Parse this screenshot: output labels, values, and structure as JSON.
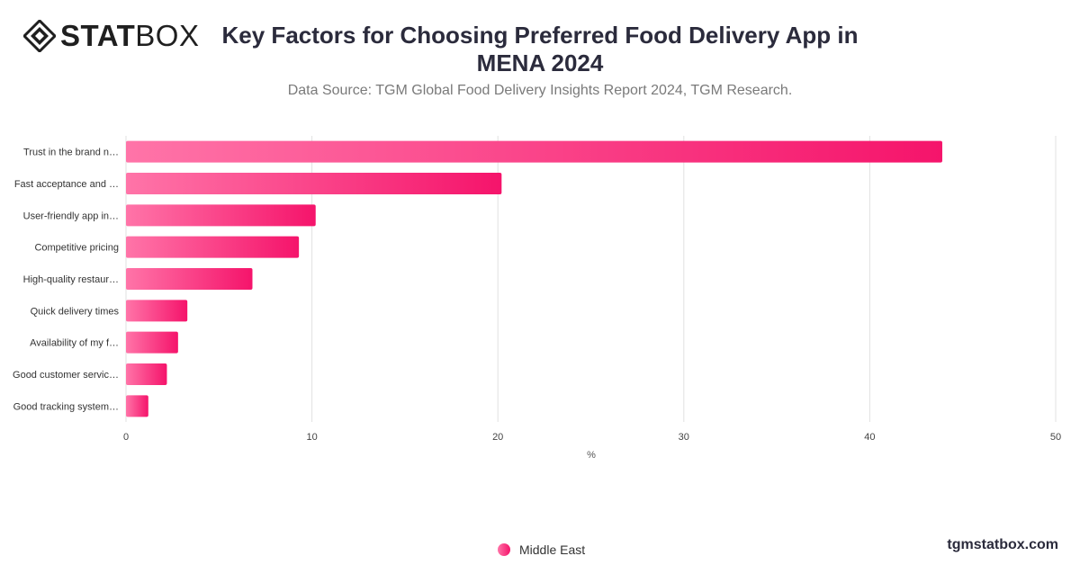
{
  "brand": {
    "logo_text_bold": "STAT",
    "logo_text_light": "BOX",
    "website": "tgmstatbox.com"
  },
  "colors": {
    "bar_start": "#ff74a8",
    "bar_end": "#f5146b",
    "grid": "#e1e1e1",
    "text": "#333333"
  },
  "chart_data": {
    "type": "bar",
    "orientation": "horizontal",
    "title": "Key Factors for Choosing Preferred Food Delivery App in MENA 2024",
    "subtitle": "Data Source: TGM Global Food Delivery Insights Report 2024, TGM Research.",
    "categories": [
      "Trust in the brand n…",
      "Fast acceptance and …",
      "User-friendly app in…",
      "Competitive pricing",
      "High-quality restaur…",
      "Quick delivery times",
      "Availability of my f…",
      "Good customer servic…",
      "Good tracking system…"
    ],
    "series": [
      {
        "name": "Middle East",
        "values": [
          43.9,
          20.2,
          10.2,
          9.3,
          6.8,
          3.3,
          2.8,
          2.2,
          1.2
        ]
      }
    ],
    "xlabel": "%",
    "ylabel": "",
    "xlim": [
      0,
      50
    ],
    "xticks": [
      0,
      10,
      20,
      30,
      40,
      50
    ],
    "grid": true,
    "legend_position": "bottom-center"
  }
}
